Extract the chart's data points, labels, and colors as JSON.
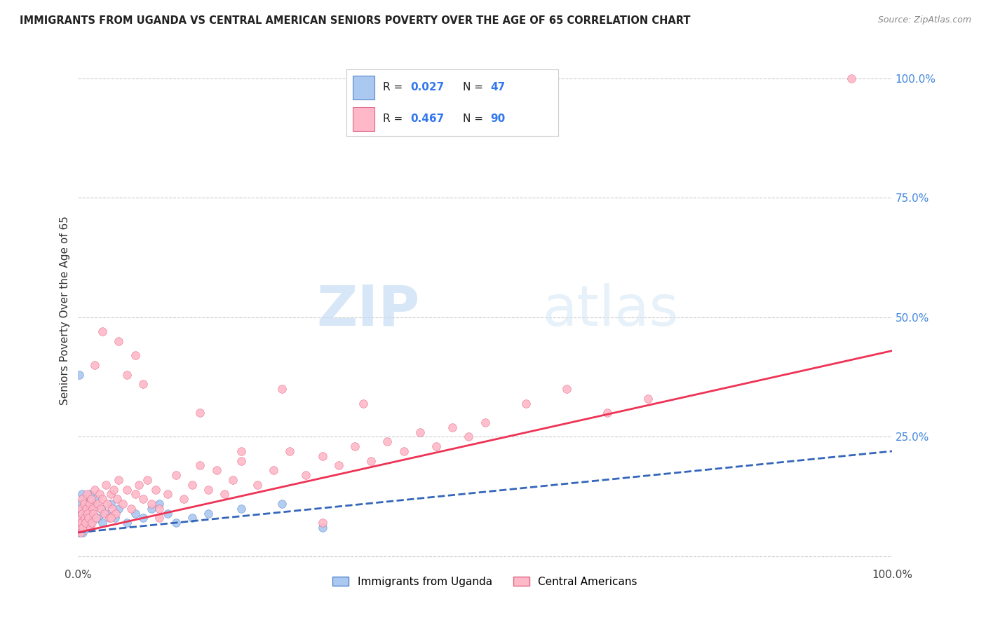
{
  "title": "IMMIGRANTS FROM UGANDA VS CENTRAL AMERICAN SENIORS POVERTY OVER THE AGE OF 65 CORRELATION CHART",
  "source": "Source: ZipAtlas.com",
  "ylabel": "Seniors Poverty Over the Age of 65",
  "xlim": [
    0,
    1.0
  ],
  "ylim": [
    -0.02,
    1.05
  ],
  "y_tick_positions": [
    0,
    0.25,
    0.5,
    0.75,
    1.0
  ],
  "y_tick_labels": [
    "",
    "25.0%",
    "50.0%",
    "75.0%",
    "100.0%"
  ],
  "x_tick_labels": [
    "0.0%",
    "100.0%"
  ],
  "grid_color": "#cccccc",
  "background_color": "#ffffff",
  "watermark_zip": "ZIP",
  "watermark_atlas": "atlas",
  "series": [
    {
      "label": "Immigrants from Uganda",
      "R": "0.027",
      "N": "47",
      "color": "#aac8f0",
      "edge_color": "#5588cc",
      "trend_color": "#3366bb",
      "trend_style": "--",
      "trend_x": [
        0.0,
        1.0
      ],
      "trend_y": [
        0.05,
        0.22
      ],
      "x": [
        0.001,
        0.001,
        0.001,
        0.002,
        0.002,
        0.002,
        0.003,
        0.003,
        0.004,
        0.004,
        0.005,
        0.005,
        0.006,
        0.006,
        0.007,
        0.008,
        0.009,
        0.01,
        0.011,
        0.012,
        0.013,
        0.014,
        0.015,
        0.016,
        0.018,
        0.02,
        0.022,
        0.025,
        0.028,
        0.03,
        0.035,
        0.04,
        0.045,
        0.05,
        0.06,
        0.07,
        0.08,
        0.09,
        0.1,
        0.11,
        0.12,
        0.14,
        0.16,
        0.2,
        0.25,
        0.3,
        0.001
      ],
      "y": [
        0.05,
        0.07,
        0.09,
        0.06,
        0.08,
        0.1,
        0.07,
        0.11,
        0.06,
        0.09,
        0.08,
        0.13,
        0.05,
        0.1,
        0.12,
        0.07,
        0.08,
        0.09,
        0.11,
        0.06,
        0.1,
        0.13,
        0.08,
        0.07,
        0.09,
        0.11,
        0.12,
        0.08,
        0.1,
        0.07,
        0.09,
        0.11,
        0.08,
        0.1,
        0.07,
        0.09,
        0.08,
        0.1,
        0.11,
        0.09,
        0.07,
        0.08,
        0.09,
        0.1,
        0.11,
        0.06,
        0.38
      ]
    },
    {
      "label": "Central Americans",
      "R": "0.467",
      "N": "90",
      "color": "#ffb8c8",
      "edge_color": "#dd6688",
      "trend_color": "#ee3355",
      "trend_style": "-",
      "trend_x": [
        0.0,
        1.0
      ],
      "trend_y": [
        0.05,
        0.43
      ],
      "x": [
        0.001,
        0.002,
        0.003,
        0.003,
        0.004,
        0.005,
        0.005,
        0.006,
        0.007,
        0.008,
        0.009,
        0.01,
        0.011,
        0.012,
        0.013,
        0.014,
        0.015,
        0.016,
        0.017,
        0.018,
        0.019,
        0.02,
        0.022,
        0.024,
        0.026,
        0.028,
        0.03,
        0.032,
        0.034,
        0.036,
        0.038,
        0.04,
        0.042,
        0.044,
        0.046,
        0.048,
        0.05,
        0.055,
        0.06,
        0.065,
        0.07,
        0.075,
        0.08,
        0.085,
        0.09,
        0.095,
        0.1,
        0.11,
        0.12,
        0.13,
        0.14,
        0.15,
        0.16,
        0.17,
        0.18,
        0.19,
        0.2,
        0.22,
        0.24,
        0.26,
        0.28,
        0.3,
        0.32,
        0.34,
        0.36,
        0.38,
        0.4,
        0.42,
        0.44,
        0.46,
        0.48,
        0.5,
        0.55,
        0.6,
        0.65,
        0.7,
        0.02,
        0.04,
        0.06,
        0.08,
        0.1,
        0.15,
        0.2,
        0.25,
        0.3,
        0.35,
        0.05,
        0.07,
        0.03,
        0.95
      ],
      "y": [
        0.06,
        0.08,
        0.05,
        0.1,
        0.07,
        0.09,
        0.12,
        0.06,
        0.11,
        0.08,
        0.07,
        0.1,
        0.13,
        0.09,
        0.08,
        0.11,
        0.06,
        0.12,
        0.07,
        0.1,
        0.09,
        0.14,
        0.08,
        0.11,
        0.13,
        0.1,
        0.12,
        0.09,
        0.15,
        0.11,
        0.08,
        0.13,
        0.1,
        0.14,
        0.09,
        0.12,
        0.16,
        0.11,
        0.14,
        0.1,
        0.13,
        0.15,
        0.12,
        0.16,
        0.11,
        0.14,
        0.08,
        0.13,
        0.17,
        0.12,
        0.15,
        0.19,
        0.14,
        0.18,
        0.13,
        0.16,
        0.2,
        0.15,
        0.18,
        0.22,
        0.17,
        0.21,
        0.19,
        0.23,
        0.2,
        0.24,
        0.22,
        0.26,
        0.23,
        0.27,
        0.25,
        0.28,
        0.32,
        0.35,
        0.3,
        0.33,
        0.4,
        0.08,
        0.38,
        0.36,
        0.1,
        0.3,
        0.22,
        0.35,
        0.07,
        0.32,
        0.45,
        0.42,
        0.47,
        1.0
      ]
    }
  ]
}
